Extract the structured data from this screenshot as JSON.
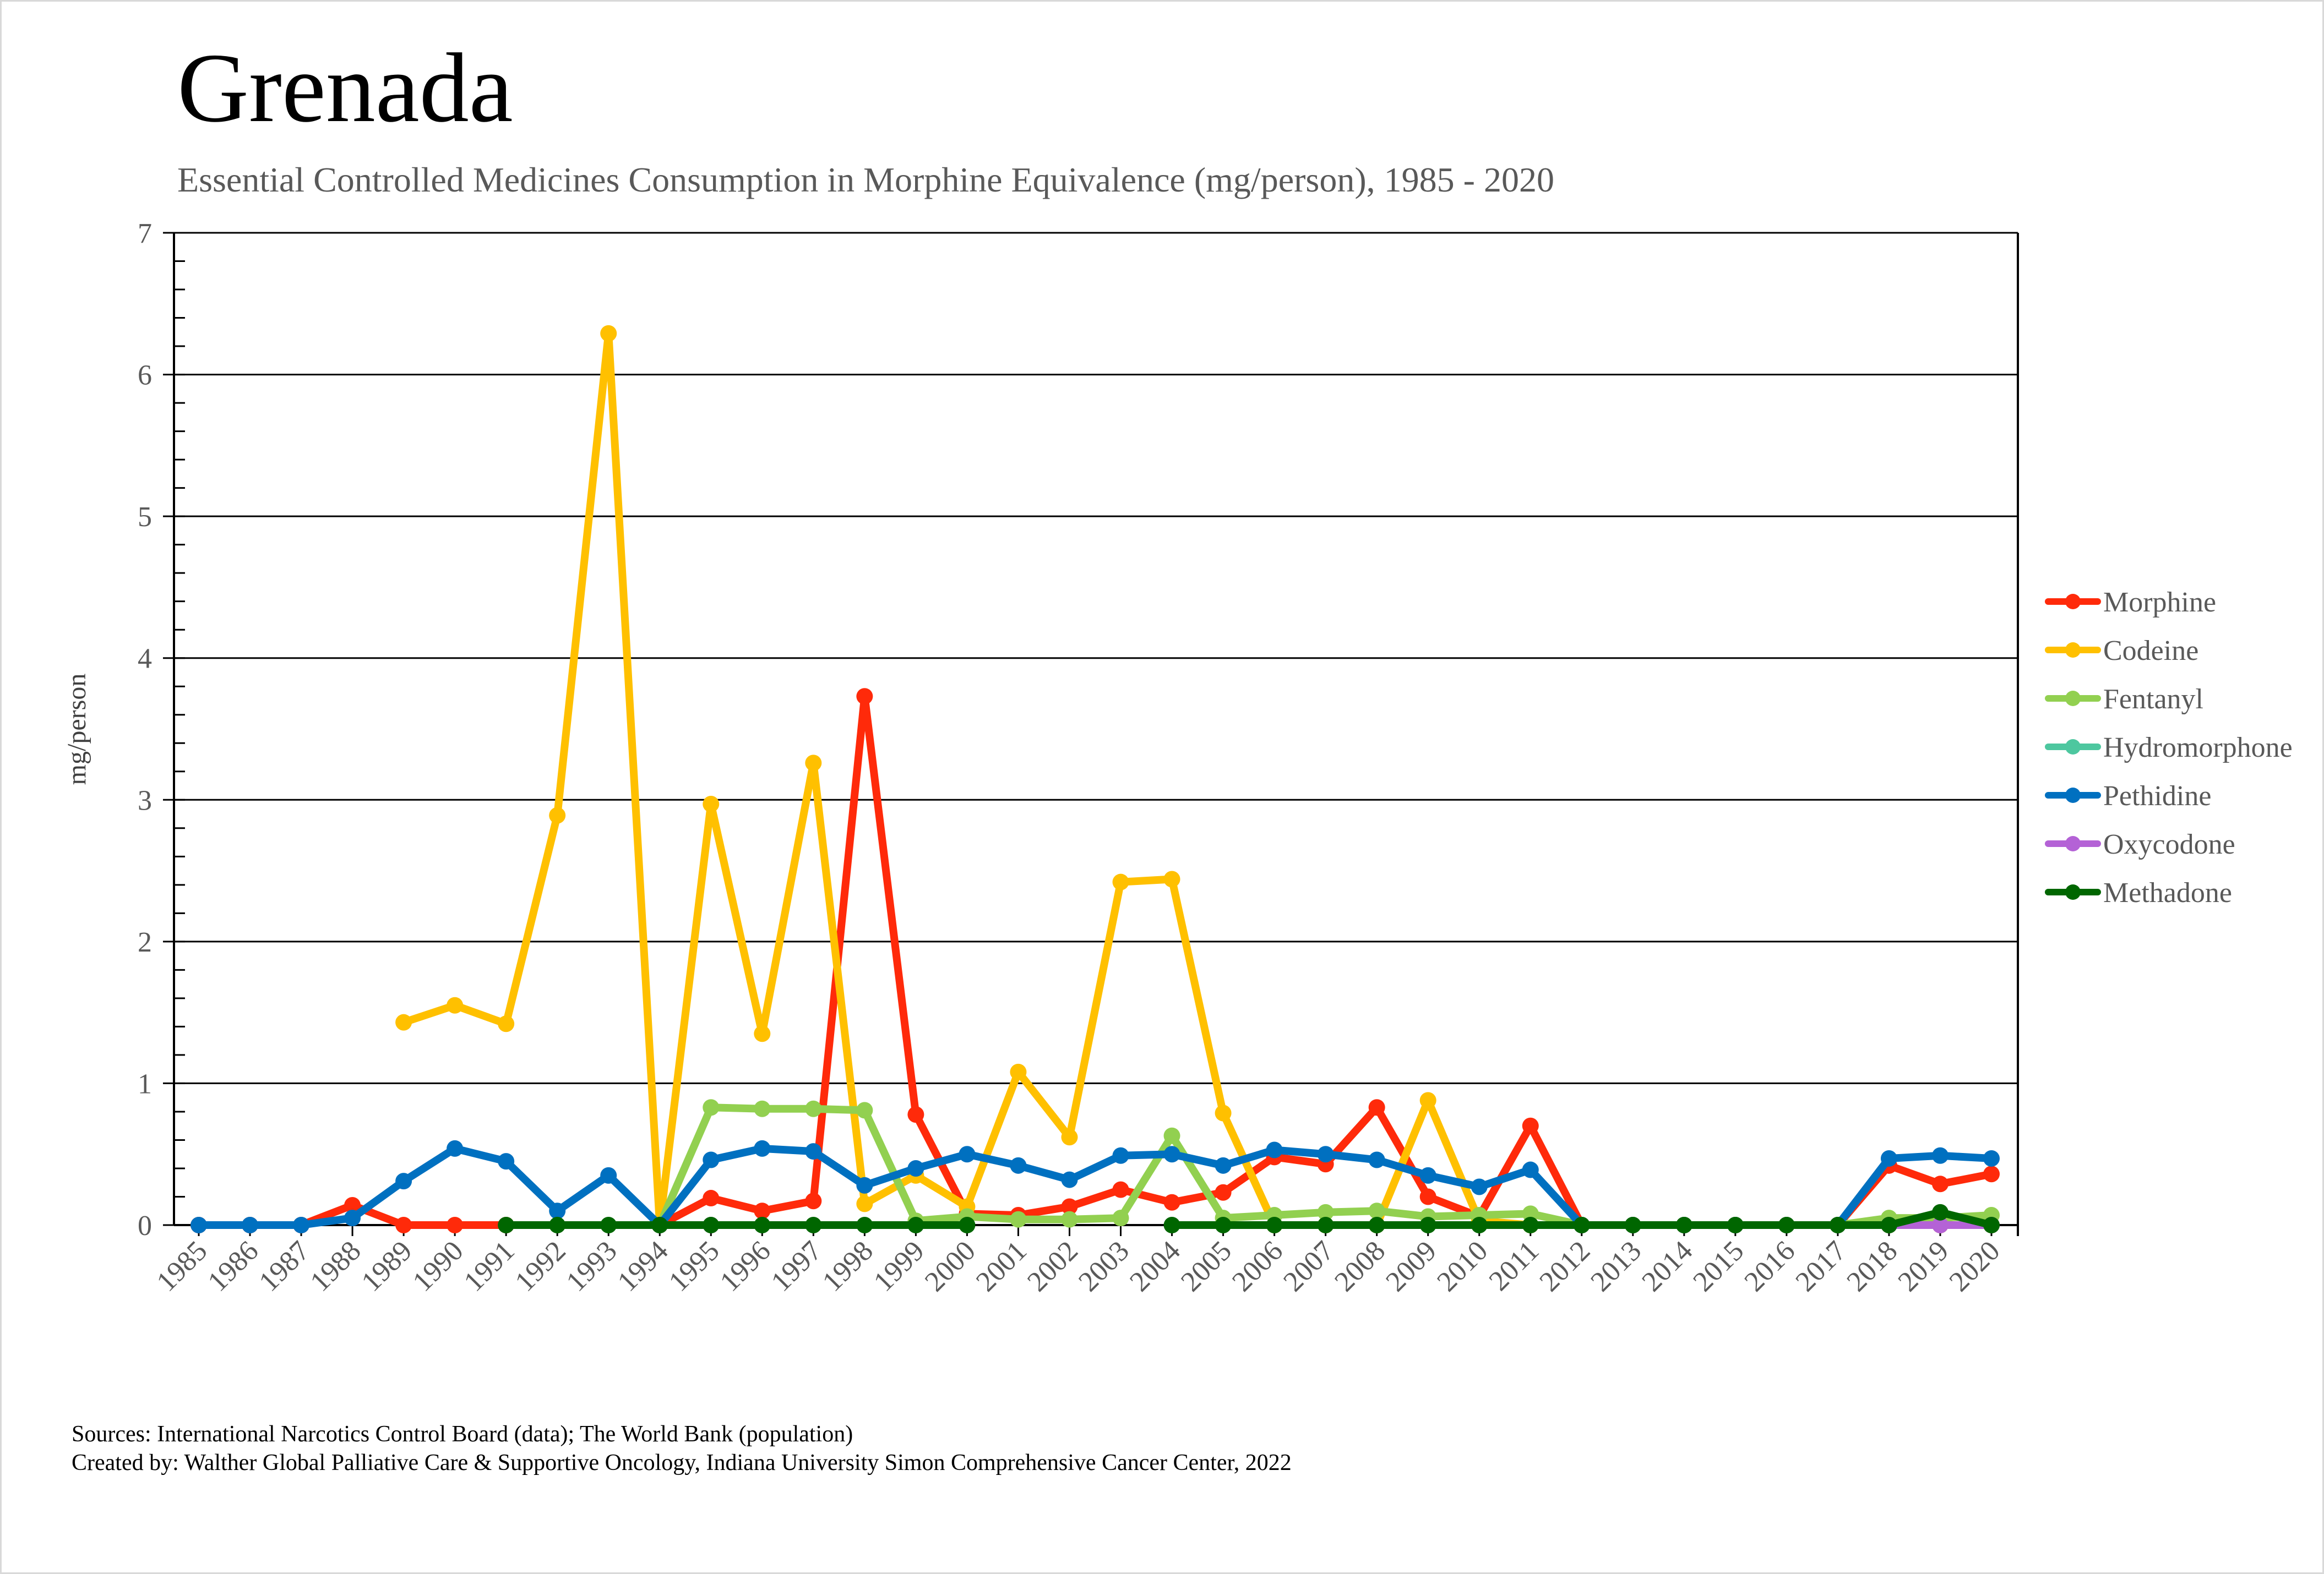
{
  "chart_data": {
    "type": "line",
    "title": "Grenada",
    "subtitle": "Essential Controlled Medicines Consumption in Morphine Equivalence (mg/person), 1985 - 2020",
    "xlabel": "",
    "ylabel": "mg/person",
    "ylim": [
      0,
      7
    ],
    "yticks": [
      "0",
      "1",
      "2",
      "3",
      "4",
      "5",
      "6",
      "7"
    ],
    "grid": true,
    "legend_position": "right",
    "x": [
      "1985",
      "1986",
      "1987",
      "1988",
      "1989",
      "1990",
      "1991",
      "1992",
      "1993",
      "1994",
      "1995",
      "1996",
      "1997",
      "1998",
      "1999",
      "2000",
      "2001",
      "2002",
      "2003",
      "2004",
      "2005",
      "2006",
      "2007",
      "2008",
      "2009",
      "2010",
      "2011",
      "2012",
      "2013",
      "2014",
      "2015",
      "2016",
      "2017",
      "2018",
      "2019",
      "2020"
    ],
    "series": [
      {
        "name": "Morphine",
        "color": "#FF2A0A",
        "values": [
          0,
          0,
          0,
          0.14,
          0,
          0,
          0,
          null,
          null,
          0,
          0.19,
          0.1,
          0.17,
          3.73,
          0.78,
          0.08,
          0.07,
          0.13,
          0.25,
          0.16,
          0.23,
          0.48,
          0.43,
          0.83,
          0.2,
          0.06,
          0.7,
          0,
          0,
          0,
          0,
          0,
          0,
          0.42,
          0.29,
          0.36
        ]
      },
      {
        "name": "Codeine",
        "color": "#FFC000",
        "values": [
          null,
          null,
          null,
          null,
          1.43,
          1.55,
          1.42,
          2.89,
          6.29,
          0,
          2.97,
          1.35,
          3.26,
          0.15,
          0.35,
          0.13,
          1.08,
          0.62,
          2.42,
          2.44,
          0.79,
          0,
          0,
          0,
          0.88,
          0.03,
          0,
          0,
          0,
          0,
          0,
          0,
          0,
          0,
          0,
          0
        ]
      },
      {
        "name": "Fentanyl",
        "color": "#92D050",
        "values": [
          null,
          null,
          null,
          null,
          null,
          null,
          null,
          null,
          null,
          0,
          0.83,
          0.82,
          0.82,
          0.81,
          0.03,
          0.06,
          0.04,
          0.04,
          0.05,
          0.63,
          0.05,
          0.07,
          0.09,
          0.1,
          0.06,
          0.07,
          0.08,
          0,
          0,
          0,
          0,
          0,
          0,
          0.05,
          0.05,
          0.07
        ]
      },
      {
        "name": "Hydromorphone",
        "color": "#4DC79F",
        "values": [
          null,
          null,
          null,
          null,
          null,
          null,
          null,
          null,
          null,
          null,
          null,
          null,
          null,
          null,
          null,
          null,
          null,
          null,
          null,
          null,
          null,
          null,
          null,
          null,
          null,
          null,
          null,
          null,
          null,
          null,
          null,
          null,
          null,
          null,
          null,
          null
        ]
      },
      {
        "name": "Pethidine",
        "color": "#0070C0",
        "values": [
          0,
          0,
          0,
          0.05,
          0.31,
          0.54,
          0.45,
          0.1,
          0.35,
          0,
          0.46,
          0.54,
          0.52,
          0.28,
          0.4,
          0.5,
          0.42,
          0.32,
          0.49,
          0.5,
          0.42,
          0.53,
          0.5,
          0.46,
          0.35,
          0.27,
          0.39,
          0,
          0,
          0,
          0,
          0,
          0,
          0.47,
          0.49,
          0.47
        ]
      },
      {
        "name": "Oxycodone",
        "color": "#B462D6",
        "values": [
          null,
          null,
          null,
          null,
          null,
          null,
          null,
          null,
          null,
          null,
          0,
          null,
          null,
          null,
          null,
          null,
          null,
          null,
          null,
          null,
          null,
          null,
          null,
          null,
          null,
          null,
          null,
          null,
          null,
          null,
          null,
          null,
          null,
          0,
          0,
          0
        ]
      },
      {
        "name": "Methadone",
        "color": "#006600",
        "values": [
          null,
          null,
          null,
          null,
          null,
          null,
          0,
          0,
          0,
          0,
          0,
          0,
          0,
          0,
          0,
          0,
          null,
          null,
          null,
          0,
          0,
          0,
          0,
          0,
          0,
          0,
          0,
          0,
          0,
          0,
          0,
          0,
          0,
          0,
          0.09,
          0
        ]
      }
    ]
  },
  "footer": {
    "sources": "Sources: International Narcotics Control Board (data); The World Bank (population)",
    "created_by": "Created by: Walther Global Palliative Care & Supportive Oncology, Indiana University Simon Comprehensive Cancer Center, 2022"
  }
}
